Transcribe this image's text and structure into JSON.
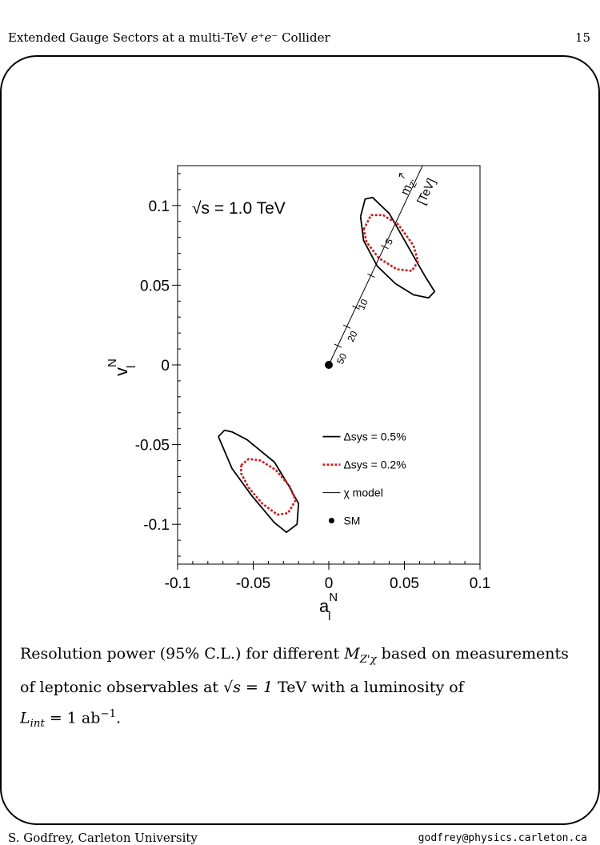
{
  "header": {
    "title_prefix": "Extended Gauge Sectors at a multi-TeV ",
    "title_math": "e⁺e⁻",
    "title_suffix": " Collider",
    "page_number": "15"
  },
  "caption": {
    "line1_a": "Resolution power (95% C.L.) for different ",
    "line1_math": "M",
    "line1_sub": "Z'χ",
    "line1_b": " based on measurements",
    "line2_a": "of leptonic observables at ",
    "line2_math": "√s = 1",
    "line2_b": "  TeV with a luminosity of",
    "line3_math": "L",
    "line3_sub": "int",
    "line3_b": " = 1 ab",
    "line3_sup": "−1",
    "line3_end": "."
  },
  "footer": {
    "left": "S. Godfrey, Carleton University",
    "right": "godfrey@physics.carleton.ca"
  },
  "chart_data": {
    "type": "line",
    "title": "√s = 1.0 TeV",
    "xlabel": "a",
    "xlabel_sup": "N",
    "xlabel_sub": "l",
    "ylabel": "v",
    "ylabel_sup": "N",
    "ylabel_sub": "l",
    "xlim": [
      -0.1,
      0.1
    ],
    "ylim": [
      -0.125,
      0.125
    ],
    "x_ticks": [
      "-0.1",
      "-0.05",
      "0",
      "0.05",
      "0.1"
    ],
    "y_ticks": [
      "-0.1",
      "-0.05",
      "0",
      "0.05",
      "0.1"
    ],
    "x_tick_values": [
      -0.1,
      -0.05,
      0,
      0.05,
      0.1
    ],
    "y_tick_values": [
      -0.1,
      -0.05,
      0,
      0.05,
      0.1
    ],
    "legend": {
      "placement": "lower-right",
      "entries": [
        "Δsys = 0.5%",
        "Δsys = 0.2%",
        "χ model",
        "SM"
      ]
    },
    "model_line": {
      "label": "m",
      "label_sub": "Z'",
      "unit": "[TeV]",
      "points": [
        [
          0,
          0
        ],
        [
          0.062,
          0.125
        ]
      ],
      "mass_labels": [
        {
          "text": "50",
          "x": 0.009,
          "y": 0.0
        },
        {
          "text": "20",
          "x": 0.016,
          "y": 0.014
        },
        {
          "text": "10",
          "x": 0.023,
          "y": 0.034
        },
        {
          "text": "5",
          "x": 0.041,
          "y": 0.075
        }
      ],
      "tick_points": [
        [
          0.006,
          0.012
        ],
        [
          0.012,
          0.024
        ],
        [
          0.018,
          0.036
        ],
        [
          0.028,
          0.056
        ],
        [
          0.037,
          0.074
        ]
      ]
    },
    "sm_point": [
      0,
      0
    ],
    "series": [
      {
        "name": "Δsys = 0.5%",
        "color": "#000000",
        "style": "solid",
        "points": [
          [
            0.021,
            0.093
          ],
          [
            0.024,
            0.104
          ],
          [
            0.029,
            0.105
          ],
          [
            0.04,
            0.095
          ],
          [
            0.055,
            0.07
          ],
          [
            0.064,
            0.055
          ],
          [
            0.07,
            0.046
          ],
          [
            0.066,
            0.042
          ],
          [
            0.056,
            0.044
          ],
          [
            0.044,
            0.051
          ],
          [
            0.032,
            0.062
          ],
          [
            0.023,
            0.078
          ],
          [
            0.021,
            0.093
          ]
        ]
      },
      {
        "name": "Δsys = 0.5%",
        "color": "#000000",
        "style": "solid",
        "points": [
          [
            -0.073,
            -0.045
          ],
          [
            -0.069,
            -0.041
          ],
          [
            -0.064,
            -0.042
          ],
          [
            -0.054,
            -0.047
          ],
          [
            -0.036,
            -0.061
          ],
          [
            -0.027,
            -0.075
          ],
          [
            -0.02,
            -0.087
          ],
          [
            -0.021,
            -0.1
          ],
          [
            -0.028,
            -0.105
          ],
          [
            -0.036,
            -0.099
          ],
          [
            -0.051,
            -0.082
          ],
          [
            -0.064,
            -0.065
          ],
          [
            -0.073,
            -0.045
          ]
        ]
      },
      {
        "name": "Δsys = 0.2%",
        "color": "#cc1f1f",
        "style": "dashed",
        "points": [
          [
            0.023,
            0.085
          ],
          [
            0.028,
            0.094
          ],
          [
            0.036,
            0.094
          ],
          [
            0.046,
            0.088
          ],
          [
            0.056,
            0.075
          ],
          [
            0.059,
            0.065
          ],
          [
            0.055,
            0.059
          ],
          [
            0.045,
            0.06
          ],
          [
            0.033,
            0.067
          ],
          [
            0.025,
            0.077
          ],
          [
            0.023,
            0.085
          ]
        ]
      },
      {
        "name": "Δsys = 0.2%",
        "color": "#cc1f1f",
        "style": "dashed",
        "points": [
          [
            -0.058,
            -0.063
          ],
          [
            -0.053,
            -0.059
          ],
          [
            -0.045,
            -0.06
          ],
          [
            -0.035,
            -0.066
          ],
          [
            -0.026,
            -0.076
          ],
          [
            -0.022,
            -0.085
          ],
          [
            -0.027,
            -0.093
          ],
          [
            -0.034,
            -0.094
          ],
          [
            -0.044,
            -0.087
          ],
          [
            -0.053,
            -0.077
          ],
          [
            -0.058,
            -0.068
          ],
          [
            -0.058,
            -0.063
          ]
        ]
      }
    ]
  }
}
